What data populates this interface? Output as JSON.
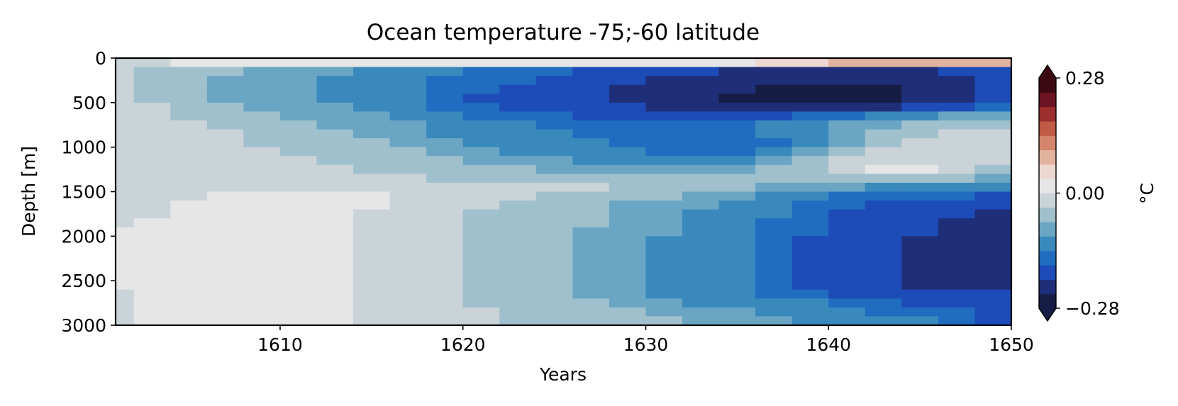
{
  "chart_data": {
    "type": "heatmap",
    "title": "Ocean temperature -75;-60 latitude",
    "xlabel": "Years",
    "ylabel": "Depth [m]",
    "xlim": [
      1601,
      1650
    ],
    "ylim": [
      3000,
      0
    ],
    "x_ticks": [
      "1610",
      "1620",
      "1630",
      "1640",
      "1650"
    ],
    "y_ticks": [
      "0",
      "500",
      "1000",
      "1500",
      "2000",
      "2500",
      "3000"
    ],
    "colorbar": {
      "label": "°C",
      "vmin": -0.28,
      "vmax": 0.28,
      "ticks": [
        "0.28",
        "0.00",
        "−0.28"
      ],
      "extend": "both",
      "colormap": "balance",
      "colors": [
        "#151d44",
        "#1f2e78",
        "#1d4cb8",
        "#1f6cc0",
        "#3a89bd",
        "#6aa6c4",
        "#9fc0cc",
        "#c9d3d8",
        "#e6e6e6",
        "#ecd8d0",
        "#e2b39e",
        "#d4856b",
        "#bf5a44",
        "#9c2e2e",
        "#6b1322",
        "#3c0912"
      ]
    },
    "depths": [
      0,
      100,
      200,
      300,
      400,
      500,
      600,
      700,
      800,
      900,
      1000,
      1100,
      1200,
      1300,
      1400,
      1500,
      1600,
      1700,
      1800,
      1900,
      2000,
      2100,
      2200,
      2300,
      2400,
      2500,
      2600,
      2700,
      2800,
      2900
    ],
    "years": [
      1601,
      1603,
      1605,
      1607,
      1609,
      1611,
      1613,
      1615,
      1617,
      1619,
      1621,
      1623,
      1625,
      1627,
      1629,
      1631,
      1633,
      1635,
      1637,
      1639,
      1641,
      1643,
      1645,
      1647,
      1649
    ],
    "values": [
      [
        -0.01,
        -0.01,
        0.0,
        0.0,
        0.0,
        0.0,
        0.01,
        0.0,
        0.0,
        0.01,
        0.01,
        0.01,
        0.01,
        0.02,
        0.02,
        0.02,
        0.02,
        0.03,
        0.04,
        0.05,
        0.08,
        0.1,
        0.1,
        0.09,
        0.1
      ],
      [
        -0.03,
        -0.04,
        -0.05,
        -0.07,
        -0.08,
        -0.09,
        -0.1,
        -0.11,
        -0.12,
        -0.13,
        -0.15,
        -0.16,
        -0.17,
        -0.18,
        -0.19,
        -0.2,
        -0.21,
        -0.22,
        -0.22,
        -0.22,
        -0.23,
        -0.22,
        -0.22,
        -0.21,
        -0.2
      ],
      [
        -0.03,
        -0.04,
        -0.06,
        -0.08,
        -0.09,
        -0.1,
        -0.11,
        -0.12,
        -0.13,
        -0.15,
        -0.16,
        -0.17,
        -0.18,
        -0.2,
        -0.21,
        -0.22,
        -0.22,
        -0.23,
        -0.23,
        -0.24,
        -0.24,
        -0.24,
        -0.23,
        -0.22,
        -0.2
      ],
      [
        -0.03,
        -0.04,
        -0.06,
        -0.08,
        -0.09,
        -0.1,
        -0.11,
        -0.12,
        -0.14,
        -0.16,
        -0.17,
        -0.18,
        -0.19,
        -0.21,
        -0.22,
        -0.23,
        -0.24,
        -0.24,
        -0.25,
        -0.25,
        -0.26,
        -0.25,
        -0.24,
        -0.22,
        -0.2
      ],
      [
        -0.03,
        -0.04,
        -0.06,
        -0.08,
        -0.09,
        -0.1,
        -0.11,
        -0.12,
        -0.14,
        -0.16,
        -0.18,
        -0.19,
        -0.2,
        -0.21,
        -0.22,
        -0.23,
        -0.24,
        -0.25,
        -0.25,
        -0.26,
        -0.27,
        -0.26,
        -0.24,
        -0.22,
        -0.2
      ],
      [
        -0.02,
        -0.03,
        -0.05,
        -0.07,
        -0.08,
        -0.09,
        -0.1,
        -0.11,
        -0.13,
        -0.15,
        -0.17,
        -0.18,
        -0.19,
        -0.2,
        -0.21,
        -0.22,
        -0.22,
        -0.23,
        -0.23,
        -0.24,
        -0.24,
        -0.22,
        -0.2,
        -0.18,
        -0.16
      ],
      [
        -0.02,
        -0.03,
        -0.04,
        -0.06,
        -0.07,
        -0.08,
        -0.09,
        -0.1,
        -0.12,
        -0.13,
        -0.15,
        -0.16,
        -0.17,
        -0.18,
        -0.19,
        -0.19,
        -0.19,
        -0.19,
        -0.18,
        -0.17,
        -0.15,
        -0.13,
        -0.11,
        -0.1,
        -0.08
      ],
      [
        -0.02,
        -0.02,
        -0.03,
        -0.04,
        -0.06,
        -0.07,
        -0.08,
        -0.09,
        -0.1,
        -0.12,
        -0.13,
        -0.14,
        -0.15,
        -0.16,
        -0.17,
        -0.17,
        -0.17,
        -0.16,
        -0.14,
        -0.12,
        -0.1,
        -0.08,
        -0.06,
        -0.05,
        -0.04
      ],
      [
        -0.01,
        -0.02,
        -0.02,
        -0.03,
        -0.05,
        -0.06,
        -0.07,
        -0.08,
        -0.09,
        -0.11,
        -0.12,
        -0.13,
        -0.14,
        -0.15,
        -0.16,
        -0.17,
        -0.17,
        -0.16,
        -0.14,
        -0.11,
        -0.08,
        -0.06,
        -0.04,
        -0.03,
        -0.03
      ],
      [
        -0.01,
        -0.02,
        -0.02,
        -0.03,
        -0.04,
        -0.05,
        -0.06,
        -0.07,
        -0.08,
        -0.1,
        -0.11,
        -0.12,
        -0.13,
        -0.14,
        -0.15,
        -0.16,
        -0.17,
        -0.17,
        -0.15,
        -0.12,
        -0.08,
        -0.05,
        -0.03,
        -0.02,
        -0.02
      ],
      [
        -0.01,
        -0.01,
        -0.02,
        -0.02,
        -0.03,
        -0.04,
        -0.05,
        -0.06,
        -0.07,
        -0.08,
        -0.1,
        -0.11,
        -0.12,
        -0.13,
        -0.14,
        -0.15,
        -0.16,
        -0.15,
        -0.13,
        -0.1,
        -0.06,
        -0.03,
        -0.02,
        -0.02,
        -0.02
      ],
      [
        -0.01,
        -0.01,
        -0.01,
        -0.02,
        -0.02,
        -0.03,
        -0.04,
        -0.05,
        -0.06,
        -0.07,
        -0.08,
        -0.09,
        -0.1,
        -0.11,
        -0.12,
        -0.13,
        -0.13,
        -0.12,
        -0.1,
        -0.07,
        -0.03,
        -0.01,
        -0.01,
        -0.01,
        -0.02
      ],
      [
        -0.01,
        -0.01,
        -0.01,
        -0.01,
        -0.02,
        -0.02,
        -0.03,
        -0.04,
        -0.05,
        -0.06,
        -0.06,
        -0.07,
        -0.08,
        -0.09,
        -0.09,
        -0.1,
        -0.09,
        -0.08,
        -0.06,
        -0.04,
        -0.02,
        0.0,
        0.0,
        -0.01,
        -0.04
      ],
      [
        -0.01,
        -0.01,
        -0.01,
        -0.01,
        -0.01,
        -0.02,
        -0.02,
        -0.03,
        -0.03,
        -0.04,
        -0.04,
        -0.04,
        -0.05,
        -0.05,
        -0.05,
        -0.05,
        -0.05,
        -0.05,
        -0.05,
        -0.05,
        -0.05,
        -0.05,
        -0.06,
        -0.07,
        -0.09
      ],
      [
        -0.01,
        -0.01,
        -0.01,
        -0.01,
        -0.01,
        -0.01,
        -0.01,
        -0.01,
        -0.02,
        -0.02,
        -0.02,
        -0.03,
        -0.03,
        -0.03,
        -0.04,
        -0.04,
        -0.05,
        -0.06,
        -0.08,
        -0.09,
        -0.1,
        -0.11,
        -0.12,
        -0.13,
        -0.14
      ],
      [
        -0.01,
        -0.01,
        -0.01,
        0.0,
        0.0,
        0.0,
        0.0,
        0.0,
        -0.01,
        -0.02,
        -0.02,
        -0.03,
        -0.04,
        -0.05,
        -0.06,
        -0.07,
        -0.08,
        -0.09,
        -0.11,
        -0.13,
        -0.15,
        -0.16,
        -0.17,
        -0.17,
        -0.18
      ],
      [
        -0.01,
        -0.01,
        0.0,
        0.0,
        0.0,
        0.0,
        0.0,
        0.0,
        -0.01,
        -0.02,
        -0.03,
        -0.04,
        -0.05,
        -0.07,
        -0.08,
        -0.09,
        -0.1,
        -0.11,
        -0.13,
        -0.15,
        -0.17,
        -0.18,
        -0.19,
        -0.19,
        -0.2
      ],
      [
        -0.01,
        -0.01,
        0.0,
        0.0,
        0.0,
        0.0,
        0.0,
        -0.01,
        -0.02,
        -0.03,
        -0.04,
        -0.05,
        -0.06,
        -0.07,
        -0.08,
        -0.1,
        -0.11,
        -0.13,
        -0.14,
        -0.16,
        -0.18,
        -0.19,
        -0.2,
        -0.21,
        -0.22
      ],
      [
        -0.01,
        0.01,
        0.01,
        0.0,
        0.0,
        0.0,
        0.0,
        -0.01,
        -0.02,
        -0.03,
        -0.04,
        -0.05,
        -0.06,
        -0.07,
        -0.09,
        -0.1,
        -0.11,
        -0.13,
        -0.15,
        -0.17,
        -0.19,
        -0.2,
        -0.21,
        -0.22,
        -0.23
      ],
      [
        0.01,
        0.01,
        0.01,
        0.0,
        0.0,
        0.0,
        0.0,
        -0.01,
        -0.02,
        -0.03,
        -0.04,
        -0.05,
        -0.06,
        -0.08,
        -0.09,
        -0.1,
        -0.12,
        -0.13,
        -0.15,
        -0.17,
        -0.19,
        -0.21,
        -0.21,
        -0.22,
        -0.23
      ],
      [
        0.01,
        0.01,
        0.01,
        0.0,
        0.0,
        0.0,
        0.0,
        -0.01,
        -0.02,
        -0.03,
        -0.04,
        -0.05,
        -0.07,
        -0.08,
        -0.09,
        -0.11,
        -0.12,
        -0.14,
        -0.16,
        -0.18,
        -0.19,
        -0.21,
        -0.22,
        -0.23,
        -0.24
      ],
      [
        0.01,
        0.01,
        0.01,
        0.0,
        0.0,
        0.0,
        0.0,
        -0.01,
        -0.02,
        -0.03,
        -0.04,
        -0.05,
        -0.07,
        -0.08,
        -0.1,
        -0.11,
        -0.12,
        -0.14,
        -0.16,
        -0.18,
        -0.2,
        -0.21,
        -0.22,
        -0.23,
        -0.24
      ],
      [
        0.01,
        0.01,
        0.01,
        0.0,
        0.0,
        0.0,
        0.0,
        -0.01,
        -0.02,
        -0.03,
        -0.04,
        -0.05,
        -0.07,
        -0.08,
        -0.1,
        -0.11,
        -0.12,
        -0.14,
        -0.16,
        -0.18,
        -0.2,
        -0.21,
        -0.22,
        -0.23,
        -0.24
      ],
      [
        0.01,
        0.01,
        0.01,
        0.0,
        0.0,
        0.0,
        0.0,
        -0.02,
        -0.03,
        -0.03,
        -0.04,
        -0.06,
        -0.07,
        -0.08,
        -0.1,
        -0.11,
        -0.13,
        -0.14,
        -0.16,
        -0.18,
        -0.2,
        -0.21,
        -0.22,
        -0.23,
        -0.24
      ],
      [
        0.01,
        0.01,
        0.01,
        0.0,
        0.0,
        0.0,
        0.0,
        -0.02,
        -0.03,
        -0.03,
        -0.04,
        -0.06,
        -0.07,
        -0.08,
        -0.1,
        -0.11,
        -0.13,
        -0.14,
        -0.16,
        -0.18,
        -0.2,
        -0.21,
        -0.22,
        -0.23,
        -0.24
      ],
      [
        0.0,
        0.01,
        0.01,
        0.0,
        0.0,
        0.0,
        0.0,
        -0.02,
        -0.03,
        -0.03,
        -0.04,
        -0.06,
        -0.07,
        -0.08,
        -0.1,
        -0.11,
        -0.13,
        -0.14,
        -0.16,
        -0.18,
        -0.2,
        -0.21,
        -0.22,
        -0.23,
        -0.24
      ],
      [
        -0.01,
        0.01,
        0.01,
        0.0,
        0.0,
        0.0,
        0.0,
        -0.02,
        -0.03,
        -0.03,
        -0.04,
        -0.05,
        -0.07,
        -0.08,
        -0.09,
        -0.11,
        -0.12,
        -0.14,
        -0.15,
        -0.17,
        -0.19,
        -0.2,
        -0.2,
        -0.2,
        -0.21
      ],
      [
        -0.01,
        0.01,
        0.01,
        0.0,
        0.0,
        0.0,
        0.0,
        -0.02,
        -0.02,
        -0.03,
        -0.04,
        -0.05,
        -0.06,
        -0.07,
        -0.08,
        -0.1,
        -0.11,
        -0.12,
        -0.13,
        -0.14,
        -0.16,
        -0.17,
        -0.18,
        -0.18,
        -0.19
      ],
      [
        -0.01,
        0.01,
        0.01,
        0.0,
        0.0,
        0.0,
        0.0,
        -0.01,
        -0.02,
        -0.02,
        -0.03,
        -0.04,
        -0.05,
        -0.06,
        -0.07,
        -0.08,
        -0.09,
        -0.1,
        -0.11,
        -0.12,
        -0.14,
        -0.15,
        -0.16,
        -0.17,
        -0.18
      ],
      [
        -0.01,
        0.01,
        0.0,
        0.0,
        0.0,
        0.0,
        0.0,
        -0.01,
        -0.01,
        -0.02,
        -0.03,
        -0.04,
        -0.05,
        -0.06,
        -0.07,
        -0.07,
        -0.08,
        -0.09,
        -0.1,
        -0.11,
        -0.12,
        -0.13,
        -0.14,
        -0.16,
        -0.18
      ]
    ]
  }
}
